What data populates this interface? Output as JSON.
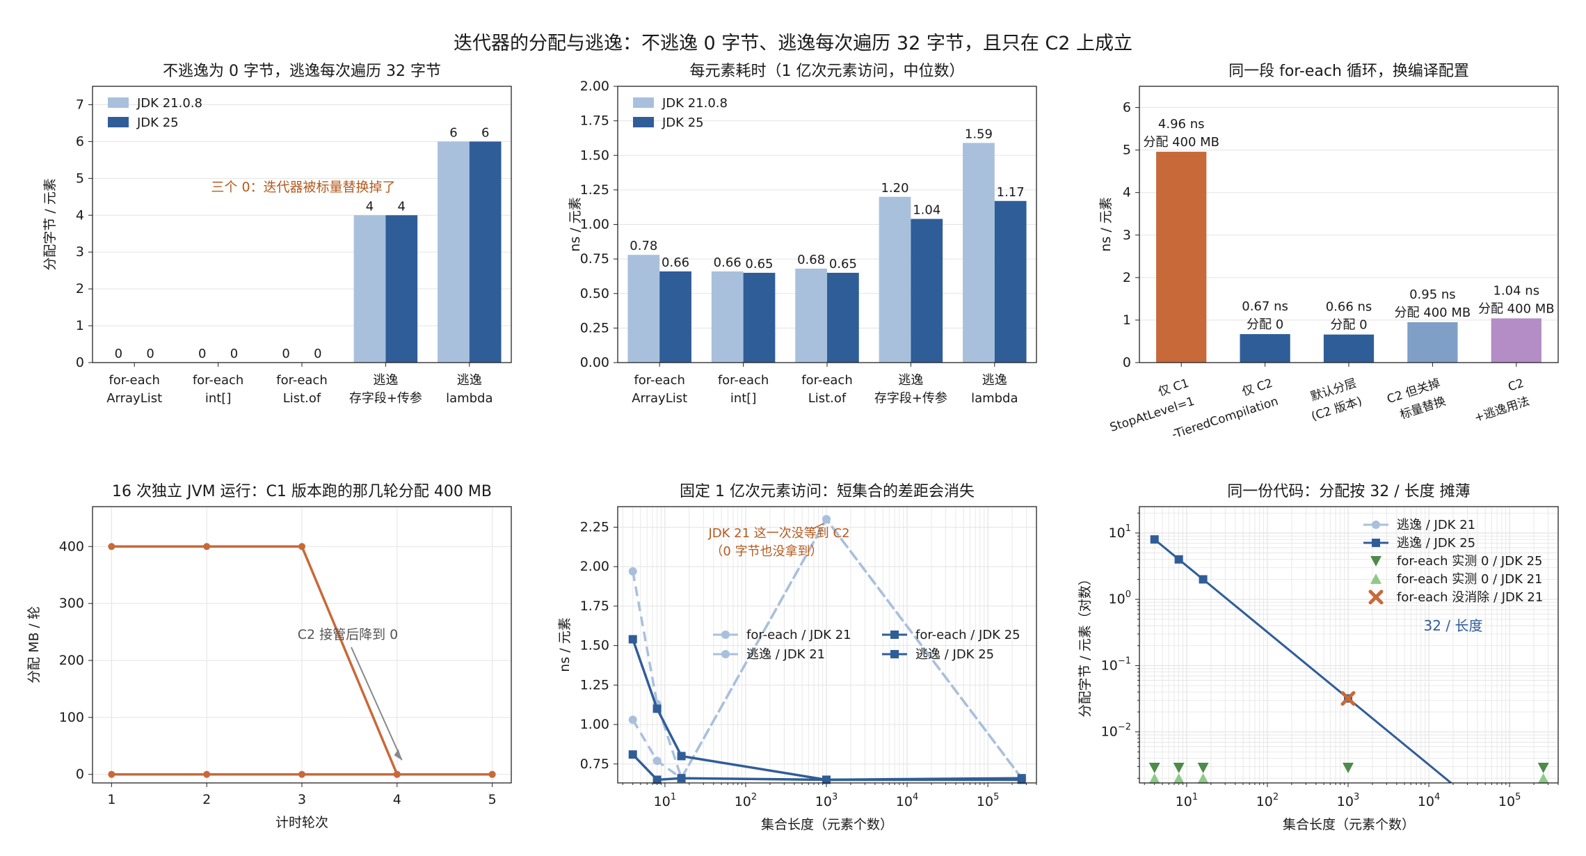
{
  "suptitle": "迭代器的分配与逃逸：不逃逸 0 字节、逃逸每次遍历 32 字节，且只在 C2 上成立",
  "colors": {
    "jdk21": "#a9c0dc",
    "jdk25": "#2f5d98",
    "orange": "#c8693a",
    "c2_noscalar": "#7f9fc6",
    "c2_escape": "#b48cc6",
    "annot_orange": "#b45a1e",
    "grid": "#e3e3e3"
  },
  "chart_data": [
    {
      "type": "bar",
      "title": "不逃逸为 0 字节，逃逸每次遍历 32 字节",
      "ylabel": "分配字节 / 元素",
      "ylim": [
        0,
        7.5
      ],
      "yticks": [
        0,
        1,
        2,
        3,
        4,
        5,
        6,
        7
      ],
      "categories": [
        [
          "for-each",
          "ArrayList"
        ],
        [
          "for-each",
          "int[]"
        ],
        [
          "for-each",
          "List.of"
        ],
        [
          "逃逸",
          "存字段+传参"
        ],
        [
          "逃逸",
          "lambda"
        ]
      ],
      "series": [
        {
          "name": "JDK 21.0.8",
          "values": [
            0,
            0,
            0,
            4,
            6
          ],
          "labels": [
            "0",
            "0",
            "0",
            "4",
            "6"
          ]
        },
        {
          "name": "JDK 25",
          "values": [
            0,
            0,
            0,
            4,
            6
          ],
          "labels": [
            "0",
            "0",
            "0",
            "4",
            "6"
          ]
        }
      ],
      "annotation": "三个 0：迭代器被标量替换掉了",
      "legend": "top-left"
    },
    {
      "type": "bar",
      "title": "每元素耗时（1 亿次元素访问，中位数）",
      "ylabel": "ns / 元素",
      "ylim": [
        0,
        2.0
      ],
      "yticks": [
        "0.00",
        "0.25",
        "0.50",
        "0.75",
        "1.00",
        "1.25",
        "1.50",
        "1.75",
        "2.00"
      ],
      "categories": [
        [
          "for-each",
          "ArrayList"
        ],
        [
          "for-each",
          "int[]"
        ],
        [
          "for-each",
          "List.of"
        ],
        [
          "逃逸",
          "存字段+传参"
        ],
        [
          "逃逸",
          "lambda"
        ]
      ],
      "series": [
        {
          "name": "JDK 21.0.8",
          "values": [
            0.78,
            0.66,
            0.68,
            1.2,
            1.59
          ],
          "labels": [
            "0.78",
            "0.66",
            "0.68",
            "1.20",
            "1.59"
          ]
        },
        {
          "name": "JDK 25",
          "values": [
            0.66,
            0.65,
            0.65,
            1.04,
            1.17
          ],
          "labels": [
            "0.66",
            "0.65",
            "0.65",
            "1.04",
            "1.17"
          ]
        }
      ],
      "legend": "top-left"
    },
    {
      "type": "bar",
      "title": "同一段 for-each 循环，换编译配置",
      "ylabel": "ns / 元素",
      "ylim": [
        0,
        6.5
      ],
      "yticks": [
        0,
        1,
        2,
        3,
        4,
        5,
        6
      ],
      "categories": [
        [
          "仅 C1",
          "StopAtLevel=1"
        ],
        [
          "仅 C2",
          "-TieredCompilation"
        ],
        [
          "默认分层",
          "(C2 版本)"
        ],
        [
          "C2 但关掉",
          "标量替换"
        ],
        [
          "C2",
          "+逃逸用法"
        ]
      ],
      "values": [
        4.96,
        0.67,
        0.66,
        0.95,
        1.04
      ],
      "labels": [
        [
          "4.96 ns",
          "分配 400 MB"
        ],
        [
          "0.67 ns",
          "分配 0"
        ],
        [
          "0.66 ns",
          "分配 0"
        ],
        [
          "0.95 ns",
          "分配 400 MB"
        ],
        [
          "1.04 ns",
          "分配 400 MB"
        ]
      ],
      "bar_colors": [
        "#c8693a",
        "#2f5d98",
        "#2f5d98",
        "#7f9fc6",
        "#b48cc6"
      ]
    },
    {
      "type": "line",
      "title": "16 次独立 JVM 运行：C1 版本跑的那几轮分配 400 MB",
      "xlabel": "计时轮次",
      "ylabel": "分配 MB / 轮",
      "xlim": [
        0.8,
        5.2
      ],
      "ylim": [
        -15,
        470
      ],
      "xticks": [
        1,
        2,
        3,
        4,
        5
      ],
      "yticks": [
        0,
        100,
        200,
        300,
        400
      ],
      "series": [
        {
          "x": [
            1,
            2,
            3,
            4,
            5
          ],
          "y": [
            400,
            400,
            400,
            0,
            0
          ]
        },
        {
          "x": [
            1,
            2,
            3,
            4,
            5
          ],
          "y": [
            0,
            0,
            0,
            0,
            0
          ]
        }
      ],
      "annotation": "C2 接管后降到 0"
    },
    {
      "type": "line",
      "title": "固定 1 亿次元素访问：短集合的差距会消失",
      "xlabel": "集合长度（元素个数）",
      "ylabel": "ns / 元素",
      "xscale": "log",
      "xlim": [
        2.6,
        400000
      ],
      "ylim": [
        0.63,
        2.38
      ],
      "xticks": [
        10,
        100,
        1000,
        10000,
        100000
      ],
      "xtick_labels": [
        [
          "10",
          "1"
        ],
        [
          "10",
          "2"
        ],
        [
          "10",
          "3"
        ],
        [
          "10",
          "4"
        ],
        [
          "10",
          "5"
        ]
      ],
      "yticks": [
        "0.75",
        "1.00",
        "1.25",
        "1.50",
        "1.75",
        "2.00",
        "2.25"
      ],
      "series": [
        {
          "name": "for-each / JDK 21",
          "x": [
            4,
            8,
            16,
            1000,
            262144
          ],
          "y": [
            1.03,
            0.77,
            0.66,
            2.3,
            0.66
          ]
        },
        {
          "name": "逃逸 / JDK 21",
          "x": [
            4,
            8,
            16,
            1000,
            262144
          ],
          "y": [
            1.97,
            1.13,
            0.66,
            2.3,
            0.66
          ]
        },
        {
          "name": "for-each / JDK 25",
          "x": [
            4,
            8,
            16,
            1000,
            262144
          ],
          "y": [
            0.81,
            0.65,
            0.66,
            0.65,
            0.65
          ]
        },
        {
          "name": "逃逸 / JDK 25",
          "x": [
            4,
            8,
            16,
            1000,
            262144
          ],
          "y": [
            1.54,
            1.1,
            0.8,
            0.65,
            0.66
          ]
        }
      ],
      "annotation": [
        "JDK 21 这一次没等到 C2",
        "（0 字节也没拿到）"
      ],
      "legend": "center-right"
    },
    {
      "type": "line",
      "title": "同一份代码：分配按 32 / 长度 摊薄",
      "xlabel": "集合长度（元素个数）",
      "ylabel": "分配字节 / 元素（对数）",
      "xscale": "log",
      "yscale": "log",
      "xlim": [
        2.6,
        400000
      ],
      "ylim": [
        0.0017,
        25
      ],
      "xticks": [
        10,
        100,
        1000,
        10000,
        100000
      ],
      "xtick_labels": [
        [
          "10",
          "1"
        ],
        [
          "10",
          "2"
        ],
        [
          "10",
          "3"
        ],
        [
          "10",
          "4"
        ],
        [
          "10",
          "5"
        ]
      ],
      "yticks": [
        0.01,
        0.1,
        1,
        10
      ],
      "ytick_labels": [
        [
          "10",
          "−2"
        ],
        [
          "10",
          "−1"
        ],
        [
          "10",
          "0"
        ],
        [
          "10",
          "1"
        ]
      ],
      "series": [
        {
          "name": "逃逸 / JDK 21",
          "x": [
            4,
            8,
            16,
            1000
          ],
          "y": [
            8,
            4,
            2,
            0.032
          ]
        },
        {
          "name": "逃逸 / JDK 25",
          "x": [
            4,
            8,
            16,
            1000,
            262144
          ],
          "y": [
            8,
            4,
            2,
            0.032,
            0.000122
          ]
        },
        {
          "name": "for-each 实测 0 / JDK 25",
          "x": [
            4,
            8,
            16,
            1000,
            262144
          ],
          "y": [
            0,
            0,
            0,
            0,
            0
          ]
        },
        {
          "name": "for-each 实测 0 / JDK 21",
          "x": [
            4,
            8,
            16,
            262144
          ],
          "y": [
            0,
            0,
            0,
            0
          ]
        },
        {
          "name": "for-each 没消除 / JDK 21",
          "x": [
            1000
          ],
          "y": [
            0.032
          ]
        }
      ],
      "annotation": "32 / 长度",
      "legend": "top-right"
    }
  ]
}
